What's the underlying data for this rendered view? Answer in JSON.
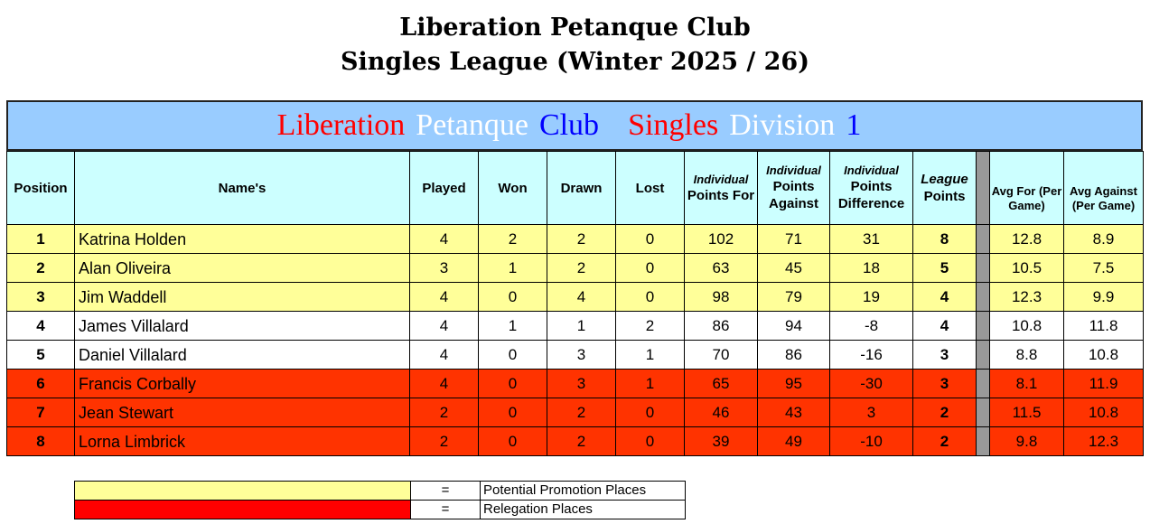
{
  "title": {
    "line1": "Liberation Petanque Club",
    "line2": "Singles League (Winter 2025 / 26)"
  },
  "banner": {
    "parts": [
      {
        "text": "Liberation",
        "color": "#ff0000"
      },
      {
        "text": "Petanque",
        "color": "#ffffff"
      },
      {
        "text": "Club",
        "color": "#0000ff"
      },
      {
        "text": "Singles",
        "color": "#ff0000"
      },
      {
        "text": "Division",
        "color": "#ffffff"
      },
      {
        "text": "1",
        "color": "#0000ff"
      }
    ]
  },
  "headers": {
    "position": "Position",
    "name": "Name's",
    "played": "Played",
    "won": "Won",
    "drawn": "Drawn",
    "lost": "Lost",
    "ipf_top": "Individual",
    "ipf": "Points For",
    "ipa_top": "Individual",
    "ipa": "Points Against",
    "ipd_top": "Individual",
    "ipd": "Points Difference",
    "lp_top": "League",
    "lp": "Points",
    "avg_for": "Avg For (Per Game)",
    "avg_against": "Avg Against (Per Game)"
  },
  "rows": [
    {
      "pos": "1",
      "name": "Katrina Holden",
      "played": "4",
      "won": "2",
      "drawn": "2",
      "lost": "0",
      "pf": "102",
      "pa": "71",
      "pd": "31",
      "lp": "8",
      "af": "12.8",
      "aa": "8.9",
      "zone": "y"
    },
    {
      "pos": "2",
      "name": "Alan Oliveira",
      "played": "3",
      "won": "1",
      "drawn": "2",
      "lost": "0",
      "pf": "63",
      "pa": "45",
      "pd": "18",
      "lp": "5",
      "af": "10.5",
      "aa": "7.5",
      "zone": "y"
    },
    {
      "pos": "3",
      "name": "Jim Waddell",
      "played": "4",
      "won": "0",
      "drawn": "4",
      "lost": "0",
      "pf": "98",
      "pa": "79",
      "pd": "19",
      "lp": "4",
      "af": "12.3",
      "aa": "9.9",
      "zone": "y"
    },
    {
      "pos": "4",
      "name": "James Villalard",
      "played": "4",
      "won": "1",
      "drawn": "1",
      "lost": "2",
      "pf": "86",
      "pa": "94",
      "pd": "-8",
      "lp": "4",
      "af": "10.8",
      "aa": "11.8",
      "zone": "w"
    },
    {
      "pos": "5",
      "name": "Daniel Villalard",
      "played": "4",
      "won": "0",
      "drawn": "3",
      "lost": "1",
      "pf": "70",
      "pa": "86",
      "pd": "-16",
      "lp": "3",
      "af": "8.8",
      "aa": "10.8",
      "zone": "w"
    },
    {
      "pos": "6",
      "name": "Francis Corbally",
      "played": "4",
      "won": "0",
      "drawn": "3",
      "lost": "1",
      "pf": "65",
      "pa": "95",
      "pd": "-30",
      "lp": "3",
      "af": "8.1",
      "aa": "11.9",
      "zone": "r"
    },
    {
      "pos": "7",
      "name": "Jean Stewart",
      "played": "2",
      "won": "0",
      "drawn": "2",
      "lost": "0",
      "pf": "46",
      "pa": "43",
      "pd": "3",
      "lp": "2",
      "af": "11.5",
      "aa": "10.8",
      "zone": "r"
    },
    {
      "pos": "8",
      "name": "Lorna Limbrick",
      "played": "2",
      "won": "0",
      "drawn": "2",
      "lost": "0",
      "pf": "39",
      "pa": "49",
      "pd": "-10",
      "lp": "2",
      "af": "9.8",
      "aa": "12.3",
      "zone": "r"
    }
  ],
  "legend": [
    {
      "color": "#ffff99",
      "eq": "=",
      "label": "Potential Promotion Places"
    },
    {
      "color": "#ff0000",
      "eq": "=",
      "label": "Relegation Places"
    }
  ]
}
